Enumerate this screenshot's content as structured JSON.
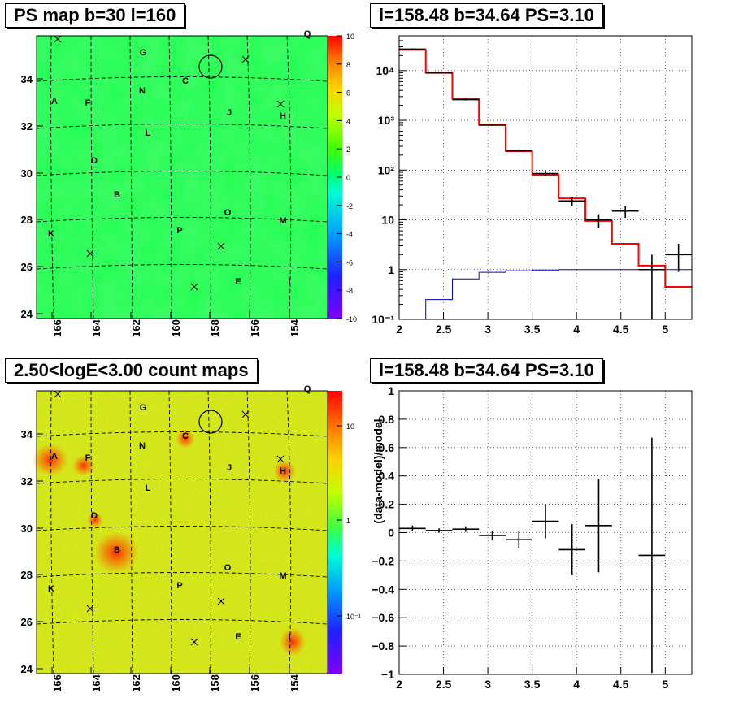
{
  "panels": {
    "map1_title": "PS map b=30 l=160",
    "spec_title": "l=158.48 b=34.64 PS=3.10",
    "map2_title": "2.50<logE<3.00 count maps",
    "resid_title": "l=158.48 b=34.64 PS=3.10",
    "resid_ylabel": "(data-model)/model"
  },
  "maps": {
    "x_ticks": [
      "166",
      "164",
      "162",
      "160",
      "158",
      "156",
      "154"
    ],
    "y_ticks": [
      "24",
      "26",
      "28",
      "30",
      "32",
      "34"
    ],
    "source_labels": [
      "Q",
      "G",
      "C",
      "N",
      "A",
      "F",
      "J",
      "H",
      "L",
      "D",
      "B",
      "O",
      "M",
      "K",
      "P",
      "E",
      "I"
    ],
    "ps_colorbar_ticks": [
      "10",
      "8",
      "6",
      "4",
      "2",
      "0",
      "-2",
      "-4",
      "-6",
      "-8",
      "-10"
    ],
    "count_colorbar_ticks": [
      "10",
      "1",
      "10⁻¹"
    ]
  },
  "chart_data": [
    {
      "type": "step",
      "title": "l=158.48 b=34.64 PS=3.10",
      "xlim": [
        2,
        5.3
      ],
      "ylim": [
        0.1,
        50000
      ],
      "yscale": "log",
      "grid": true,
      "x_ticks": [
        "2",
        "2.5",
        "3",
        "3.5",
        "4",
        "4.5",
        "5"
      ],
      "y_ticks": [
        "10⁻¹",
        "1",
        "10",
        "10²",
        "10³",
        "10⁴"
      ],
      "model_total": {
        "color": "#ff0000",
        "edges": [
          2.0,
          2.3,
          2.6,
          2.9,
          3.2,
          3.5,
          3.8,
          4.1,
          4.4,
          4.7,
          5.0,
          5.3
        ],
        "values": [
          26000,
          9000,
          2700,
          820,
          240,
          80,
          27,
          9.5,
          3.3,
          1.2,
          0.45
        ]
      },
      "model_source": {
        "color": "#0000cc",
        "edges": [
          2.0,
          2.3,
          2.6,
          2.9,
          3.2,
          3.5,
          3.8,
          4.1,
          4.4,
          4.7,
          5.0,
          5.3
        ],
        "values": [
          0.08,
          0.25,
          0.65,
          0.88,
          0.95,
          0.98,
          1.0,
          1.0,
          1.0,
          1.0,
          1.0
        ]
      },
      "data_points": [
        {
          "x": 2.15,
          "y": 27000,
          "ylo": 26000,
          "yhi": 28000
        },
        {
          "x": 2.45,
          "y": 9000,
          "ylo": 8800,
          "yhi": 9200
        },
        {
          "x": 2.75,
          "y": 2600,
          "ylo": 2500,
          "yhi": 2700
        },
        {
          "x": 3.05,
          "y": 800,
          "ylo": 770,
          "yhi": 830
        },
        {
          "x": 3.35,
          "y": 245,
          "ylo": 230,
          "yhi": 260
        },
        {
          "x": 3.65,
          "y": 85,
          "ylo": 76,
          "yhi": 94
        },
        {
          "x": 3.95,
          "y": 24,
          "ylo": 19,
          "yhi": 29
        },
        {
          "x": 4.25,
          "y": 10,
          "ylo": 7,
          "yhi": 13
        },
        {
          "x": 4.55,
          "y": 15,
          "ylo": 11,
          "yhi": 19
        },
        {
          "x": 4.85,
          "y": 1.0,
          "ylo": 0.1,
          "yhi": 2.0
        },
        {
          "x": 5.15,
          "y": 2.0,
          "ylo": 0.9,
          "yhi": 3.3
        }
      ]
    },
    {
      "type": "errorbar",
      "title": "l=158.48 b=34.64 PS=3.10",
      "ylabel": "(data-model)/model",
      "xlim": [
        2,
        5.3
      ],
      "ylim": [
        -1,
        1
      ],
      "grid": true,
      "x_ticks": [
        "2",
        "2.5",
        "3",
        "3.5",
        "4",
        "4.5",
        "5"
      ],
      "y_ticks": [
        "1",
        "0.8",
        "0.6",
        "0.4",
        "0.2",
        "0",
        "−0.2",
        "−0.4",
        "−0.6",
        "−0.8",
        "−1"
      ],
      "points": [
        {
          "x": 2.15,
          "y": 0.03,
          "err": 0.02
        },
        {
          "x": 2.45,
          "y": 0.015,
          "err": 0.015
        },
        {
          "x": 2.75,
          "y": 0.025,
          "err": 0.02
        },
        {
          "x": 3.05,
          "y": -0.02,
          "err": 0.035
        },
        {
          "x": 3.35,
          "y": -0.05,
          "err": 0.06
        },
        {
          "x": 3.65,
          "y": 0.08,
          "err": 0.12
        },
        {
          "x": 3.95,
          "y": -0.12,
          "err": 0.18
        },
        {
          "x": 4.25,
          "y": 0.05,
          "err": 0.33
        },
        {
          "x": 4.85,
          "y": -0.16,
          "err": 0.83
        }
      ]
    }
  ]
}
